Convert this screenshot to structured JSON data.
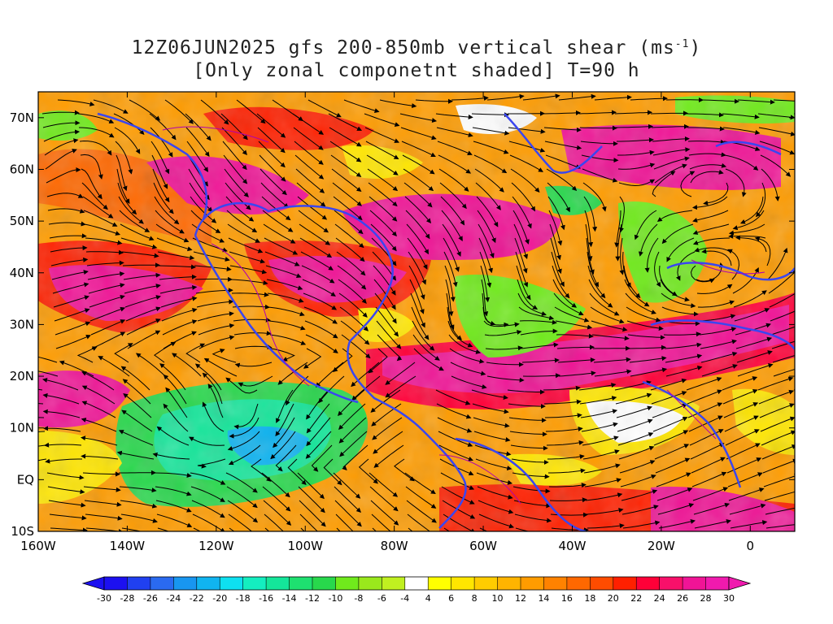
{
  "title": {
    "line1_pre": "12Z06JUN2025 gfs 200-850mb vertical shear (ms",
    "line1_sup": "-1",
    "line1_post": ")",
    "line2": "[Only zonal componetnt shaded] T=90 h"
  },
  "lat_ticks": [
    "70N",
    "60N",
    "50N",
    "40N",
    "30N",
    "20N",
    "10N",
    "EQ",
    "10S"
  ],
  "lon_ticks": [
    "160W",
    "140W",
    "120W",
    "100W",
    "80W",
    "60W",
    "40W",
    "20W",
    "0"
  ],
  "colorbar": {
    "labels": [
      "-30",
      "-28",
      "-26",
      "-24",
      "-22",
      "-20",
      "-18",
      "-16",
      "-14",
      "-12",
      "-10",
      "-8",
      "-6",
      "-4",
      "4",
      "6",
      "8",
      "10",
      "12",
      "14",
      "16",
      "18",
      "20",
      "22",
      "24",
      "26",
      "28",
      "30"
    ],
    "colors": [
      "#1c10f0",
      "#2040f0",
      "#2a6af0",
      "#1896f0",
      "#10b4f0",
      "#0ee0f0",
      "#14eec0",
      "#14e69a",
      "#1ee070",
      "#28d84c",
      "#70ea1c",
      "#9ae81c",
      "#c0f020",
      "#ffffff",
      "#ffff00",
      "#ffe600",
      "#ffcc00",
      "#ffb400",
      "#ff9c00",
      "#ff8200",
      "#ff6800",
      "#ff4c00",
      "#ff2000",
      "#ff0038",
      "#f8106a",
      "#f01496",
      "#f01aae"
    ],
    "under_color": "#1c10f0",
    "over_color": "#f01aae"
  },
  "map_colors": {
    "land_border": "#3a46f0",
    "streamline": "#000000",
    "contour": "#b000b0"
  }
}
